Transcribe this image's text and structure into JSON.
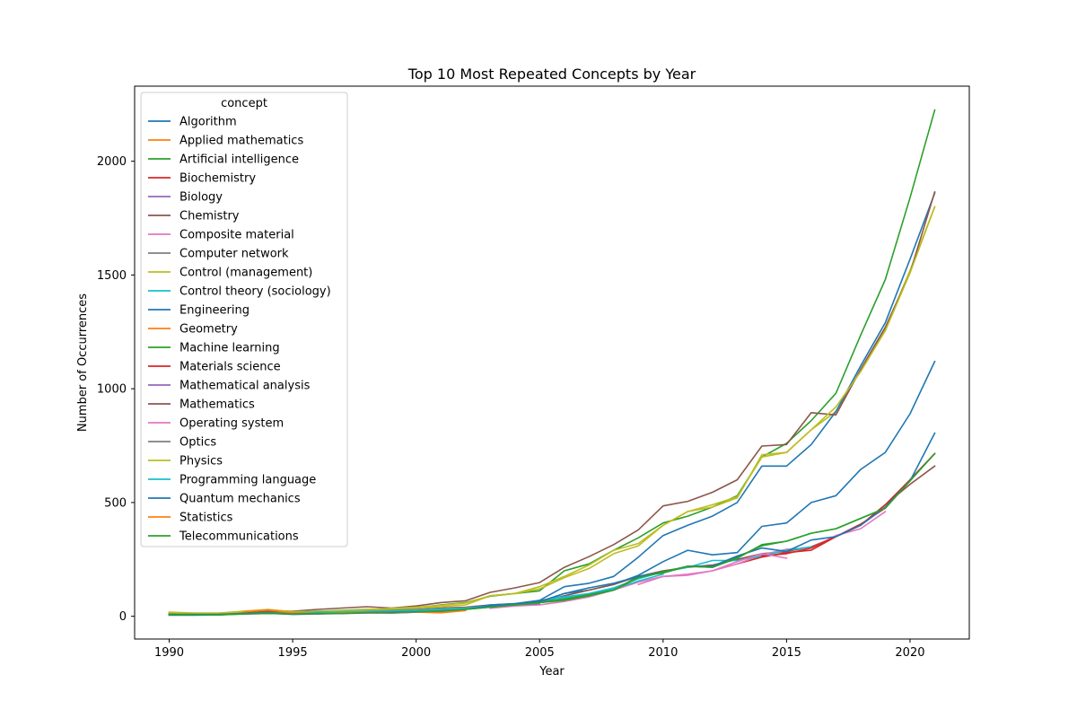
{
  "chart_data": {
    "type": "line",
    "title": "Top 10 Most Repeated Concepts by Year",
    "xlabel": "Year",
    "ylabel": "Number of Occurrences",
    "xlim": [
      1988.6,
      2022.4
    ],
    "ylim": [
      -100,
      2330
    ],
    "xticks": [
      1990,
      1995,
      2000,
      2005,
      2010,
      2015,
      2020
    ],
    "yticks": [
      0,
      500,
      1000,
      1500,
      2000
    ],
    "grid": false,
    "legend": {
      "title": "concept",
      "placement": "top-left"
    },
    "series": [
      {
        "name": "Algorithm",
        "color": "#1f77b4",
        "x": [
          1990,
          1991,
          1992,
          1993,
          1994,
          1995,
          1996,
          1997,
          1998,
          1999,
          2000,
          2001,
          2002,
          2003,
          2004,
          2005,
          2006,
          2007,
          2008,
          2009,
          2010,
          2011,
          2012,
          2013,
          2014,
          2015,
          2016,
          2017,
          2018,
          2019,
          2020,
          2021
        ],
        "y": [
          5,
          5,
          6,
          10,
          14,
          8,
          10,
          14,
          18,
          20,
          22,
          28,
          36,
          45,
          50,
          60,
          100,
          115,
          140,
          180,
          240,
          290,
          270,
          280,
          395,
          410,
          500,
          530,
          645,
          720,
          890,
          1120
        ]
      },
      {
        "name": "Applied mathematics",
        "color": "#ff7f0e",
        "x": [
          1995,
          1996,
          1997,
          1998,
          1999,
          2000,
          2001,
          2002
        ],
        "y": [
          12,
          14,
          16,
          20,
          22,
          22,
          20,
          26
        ]
      },
      {
        "name": "Artificial intelligence",
        "color": "#2ca02c",
        "x": [
          1990,
          1991,
          1992,
          1993,
          1994,
          1995,
          1996,
          1997,
          1998,
          1999,
          2000,
          2001,
          2002,
          2003,
          2004,
          2005,
          2006,
          2007,
          2008,
          2009,
          2010,
          2011,
          2012,
          2013,
          2014,
          2015,
          2016,
          2017,
          2018,
          2019,
          2020,
          2021
        ],
        "y": [
          12,
          10,
          12,
          18,
          25,
          18,
          22,
          26,
          30,
          32,
          38,
          50,
          60,
          88,
          100,
          112,
          200,
          230,
          290,
          345,
          410,
          440,
          480,
          530,
          700,
          760,
          860,
          980,
          1235,
          1480,
          1840,
          2225
        ]
      },
      {
        "name": "Biochemistry",
        "color": "#d62728",
        "x": [
          2013,
          2014,
          2015,
          2016,
          2017,
          2018,
          2019
        ],
        "y": [
          230,
          260,
          280,
          290,
          350,
          405,
          475
        ]
      },
      {
        "name": "Biology",
        "color": "#9467bd",
        "x": [
          1990,
          1991,
          1992,
          1993,
          1994,
          1995,
          1996,
          1997,
          1998,
          1999,
          2000,
          2001
        ],
        "y": [
          8,
          8,
          8,
          10,
          12,
          10,
          10,
          12,
          14,
          14,
          18,
          20
        ]
      },
      {
        "name": "Chemistry",
        "color": "#8c564b",
        "x": [
          1990,
          1991,
          1992,
          1993,
          1994,
          1995,
          1996,
          1997,
          1998,
          1999,
          2000,
          2001,
          2002,
          2003,
          2004,
          2005,
          2006,
          2007,
          2008,
          2009,
          2010,
          2011,
          2012,
          2013,
          2014,
          2015,
          2016,
          2017,
          2018,
          2019,
          2020,
          2021
        ],
        "y": [
          8,
          8,
          8,
          12,
          18,
          15,
          18,
          20,
          25,
          25,
          30,
          36,
          40,
          50,
          55,
          60,
          90,
          115,
          140,
          175,
          200,
          215,
          225,
          250,
          275,
          285,
          305,
          350,
          400,
          490,
          580,
          660
        ]
      },
      {
        "name": "Composite material",
        "color": "#e377c2",
        "x": [
          2003,
          2004,
          2005,
          2006,
          2007,
          2008,
          2009,
          2010,
          2011,
          2012,
          2013,
          2014,
          2015,
          2016,
          2017,
          2018,
          2019
        ],
        "y": [
          35,
          45,
          50,
          65,
          85,
          115,
          150,
          175,
          185,
          200,
          230,
          270,
          295,
          300,
          355,
          385,
          460
        ]
      },
      {
        "name": "Computer network",
        "color": "#7f7f7f",
        "x": [
          1995,
          1996,
          1997,
          1998,
          1999,
          2000,
          2001,
          2002,
          2003,
          2004,
          2005
        ],
        "y": [
          20,
          22,
          24,
          28,
          28,
          30,
          34,
          38,
          45,
          50,
          55
        ]
      },
      {
        "name": "Control (management)",
        "color": "#bcbd22",
        "x": [
          1990,
          1991,
          1992,
          1993,
          1994,
          1995,
          1996,
          1997,
          1998,
          1999,
          2000,
          2001,
          2002,
          2003,
          2004,
          2005,
          2006,
          2007,
          2008,
          2009,
          2010,
          2011,
          2012,
          2013,
          2014,
          2015,
          2016,
          2017,
          2018,
          2019,
          2020,
          2021
        ],
        "y": [
          18,
          14,
          14,
          22,
          30,
          20,
          22,
          22,
          28,
          32,
          36,
          42,
          50,
          90,
          100,
          120,
          170,
          210,
          275,
          310,
          400,
          460,
          480,
          520,
          710,
          720,
          820,
          900,
          1080,
          1260,
          1520,
          1800
        ]
      },
      {
        "name": "Control theory (sociology)",
        "color": "#17becf",
        "x": [
          2005,
          2006,
          2007,
          2008,
          2009,
          2010,
          2011,
          2012,
          2013,
          2014,
          2015,
          2016
        ],
        "y": [
          70,
          85,
          100,
          125,
          165,
          195,
          215,
          245,
          245,
          265,
          290,
          305
        ]
      },
      {
        "name": "Engineering",
        "color": "#1f77b4",
        "x": [
          1990,
          1991,
          1992,
          1993,
          1994,
          1995,
          1996,
          1997,
          1998,
          1999,
          2000,
          2001,
          2002,
          2003,
          2004,
          2005,
          2006,
          2007,
          2008,
          2009,
          2010,
          2011,
          2012,
          2013,
          2014,
          2015,
          2016,
          2017,
          2018,
          2019,
          2020,
          2021
        ],
        "y": [
          6,
          8,
          6,
          12,
          16,
          10,
          14,
          14,
          20,
          20,
          24,
          26,
          34,
          50,
          56,
          70,
          130,
          145,
          175,
          260,
          355,
          400,
          440,
          500,
          660,
          660,
          755,
          900,
          1100,
          1290,
          1570,
          1860
        ]
      },
      {
        "name": "Geometry",
        "color": "#ff7f0e",
        "x": [
          1998,
          1999,
          2000,
          2001,
          2002
        ],
        "y": [
          20,
          20,
          18,
          15,
          25
        ]
      },
      {
        "name": "Machine learning",
        "color": "#2ca02c",
        "x": [
          2001,
          2002,
          2003,
          2004,
          2005,
          2006,
          2007,
          2008,
          2009,
          2010,
          2011,
          2012,
          2013,
          2014,
          2015,
          2016,
          2017,
          2018,
          2019,
          2020,
          2021
        ],
        "y": [
          20,
          30,
          40,
          50,
          60,
          70,
          90,
          115,
          175,
          190,
          220,
          215,
          260,
          310,
          330,
          365,
          385,
          430,
          475,
          600,
          715
        ]
      },
      {
        "name": "Materials science",
        "color": "#d62728",
        "x": [
          2014,
          2015,
          2016,
          2017,
          2018,
          2019,
          2020,
          2021
        ],
        "y": [
          265,
          275,
          300,
          350,
          400,
          490,
          600,
          715
        ]
      },
      {
        "name": "Mathematical analysis",
        "color": "#9467bd",
        "x": [
          1994,
          1995,
          1996,
          1997,
          1998,
          1999,
          2000,
          2001
        ],
        "y": [
          15,
          14,
          15,
          16,
          18,
          14,
          18,
          22
        ]
      },
      {
        "name": "Mathematics",
        "color": "#8c564b",
        "x": [
          1990,
          1991,
          1992,
          1993,
          1994,
          1995,
          1996,
          1997,
          1998,
          1999,
          2000,
          2001,
          2002,
          2003,
          2004,
          2005,
          2006,
          2007,
          2008,
          2009,
          2010,
          2011,
          2012,
          2013,
          2014,
          2015,
          2016,
          2017,
          2018,
          2019,
          2020,
          2021
        ],
        "y": [
          10,
          10,
          10,
          15,
          22,
          22,
          30,
          36,
          42,
          36,
          45,
          60,
          68,
          105,
          125,
          148,
          215,
          262,
          315,
          380,
          485,
          505,
          545,
          600,
          748,
          755,
          895,
          885,
          1085,
          1270,
          1510,
          1865
        ]
      },
      {
        "name": "Operating system",
        "color": "#e377c2",
        "x": [
          2009,
          2010,
          2011,
          2012,
          2013,
          2014,
          2015
        ],
        "y": [
          140,
          175,
          180,
          200,
          240,
          275,
          255
        ]
      },
      {
        "name": "Optics",
        "color": "#7f7f7f",
        "x": [
          1992,
          1993,
          1994,
          1995,
          1996,
          1997,
          1998,
          1999,
          2000,
          2001
        ],
        "y": [
          10,
          12,
          16,
          14,
          16,
          18,
          20,
          22,
          24,
          28
        ]
      },
      {
        "name": "Physics",
        "color": "#bcbd22",
        "x": [
          1990,
          1991,
          1992,
          1993,
          1994,
          1995,
          1996,
          1997,
          1998,
          1999,
          2000,
          2001,
          2002,
          2003,
          2004,
          2005,
          2006,
          2007,
          2008,
          2009,
          2010,
          2011,
          2012,
          2013,
          2014,
          2015,
          2016,
          2017,
          2018,
          2019,
          2020,
          2021
        ],
        "y": [
          15,
          12,
          12,
          20,
          28,
          20,
          22,
          25,
          28,
          35,
          40,
          48,
          58,
          90,
          100,
          130,
          175,
          225,
          290,
          320,
          400,
          460,
          490,
          525,
          700,
          720,
          820,
          920,
          1075,
          1255,
          1510,
          1800
        ]
      },
      {
        "name": "Programming language",
        "color": "#17becf",
        "x": [
          1995,
          1996,
          1997,
          1998,
          1999,
          2000,
          2001,
          2002,
          2003,
          2004,
          2005,
          2006,
          2007,
          2008,
          2009,
          2010
        ],
        "y": [
          15,
          18,
          18,
          22,
          24,
          26,
          30,
          35,
          45,
          50,
          60,
          80,
          95,
          120,
          155,
          185
        ]
      },
      {
        "name": "Quantum mechanics",
        "color": "#1f77b4",
        "x": [
          1990,
          1991,
          1992,
          1993,
          1994,
          1995,
          1996,
          1997,
          1998,
          1999,
          2000,
          2001,
          2002,
          2003,
          2004,
          2005,
          2006,
          2007,
          2008,
          2009,
          2010,
          2011,
          2012,
          2013,
          2014,
          2015,
          2016,
          2017,
          2018,
          2019,
          2020,
          2021
        ],
        "y": [
          8,
          8,
          8,
          12,
          14,
          10,
          12,
          12,
          18,
          18,
          20,
          22,
          30,
          45,
          50,
          65,
          100,
          125,
          145,
          175,
          195,
          220,
          220,
          265,
          300,
          285,
          335,
          350,
          400,
          480,
          595,
          805
        ]
      },
      {
        "name": "Statistics",
        "color": "#ff7f0e",
        "x": [
          1993,
          1994,
          1995,
          1996,
          1997,
          1998,
          1999,
          2000,
          2001,
          2002
        ],
        "y": [
          20,
          28,
          15,
          12,
          14,
          18,
          16,
          20,
          18,
          26
        ]
      },
      {
        "name": "Telecommunications",
        "color": "#2ca02c",
        "x": [
          1990,
          1991,
          1992,
          1993,
          1994,
          1995,
          1996,
          1997,
          1998,
          1999,
          2000,
          2001,
          2002,
          2003,
          2004,
          2005,
          2006,
          2007,
          2008,
          2009,
          2010,
          2011,
          2012,
          2013,
          2014,
          2015,
          2016,
          2017,
          2018,
          2019,
          2020,
          2021
        ],
        "y": [
          6,
          6,
          6,
          10,
          12,
          10,
          12,
          12,
          16,
          16,
          20,
          22,
          30,
          40,
          50,
          60,
          75,
          95,
          115,
          170,
          195,
          220,
          215,
          255,
          315,
          330,
          365,
          385,
          430,
          475,
          595,
          715
        ]
      }
    ]
  }
}
